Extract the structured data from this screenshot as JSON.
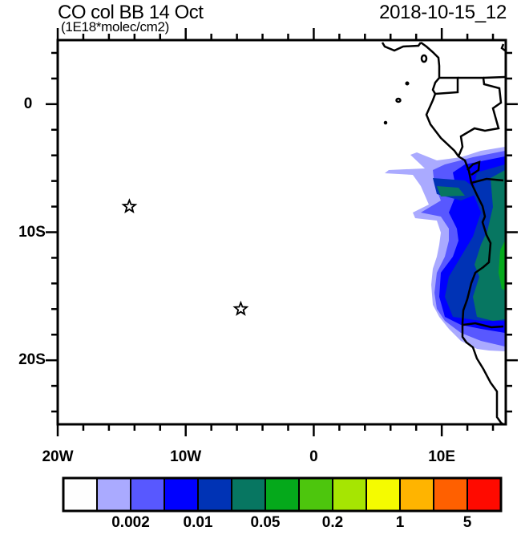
{
  "header": {
    "title": "CO col BB 14 Oct",
    "subtitle": "(1E18*molec/cm2)",
    "timestamp": "2018-10-15_12"
  },
  "map": {
    "lon_range": [
      -20,
      15
    ],
    "lat_range": [
      -25,
      5
    ],
    "lon_labels": [
      {
        "value": -20,
        "text": "20W"
      },
      {
        "value": -10,
        "text": "10W"
      },
      {
        "value": 0,
        "text": "0"
      },
      {
        "value": 10,
        "text": "10E"
      }
    ],
    "lat_labels": [
      {
        "value": 0,
        "text": "0"
      },
      {
        "value": -10,
        "text": "10S"
      },
      {
        "value": -20,
        "text": "20S"
      }
    ],
    "markers": [
      {
        "name": "star-marker",
        "lon": -14.4,
        "lat": -8.0
      },
      {
        "name": "star-marker",
        "lon": -5.7,
        "lat": -16.0
      }
    ]
  },
  "colorbar": {
    "colors": [
      "#fefefe",
      "#aaaaff",
      "#5858ff",
      "#0000ff",
      "#0033b5",
      "#077661",
      "#05a91b",
      "#4dc60d",
      "#a6e502",
      "#f5fb00",
      "#ffb400",
      "#ff6000",
      "#ff0a00"
    ],
    "labels": [
      {
        "boundary": 2,
        "text": "0.002"
      },
      {
        "boundary": 4,
        "text": "0.01"
      },
      {
        "boundary": 6,
        "text": "0.05"
      },
      {
        "boundary": 8,
        "text": "0.2"
      },
      {
        "boundary": 10,
        "text": "1"
      },
      {
        "boundary": 12,
        "text": "5"
      }
    ]
  }
}
